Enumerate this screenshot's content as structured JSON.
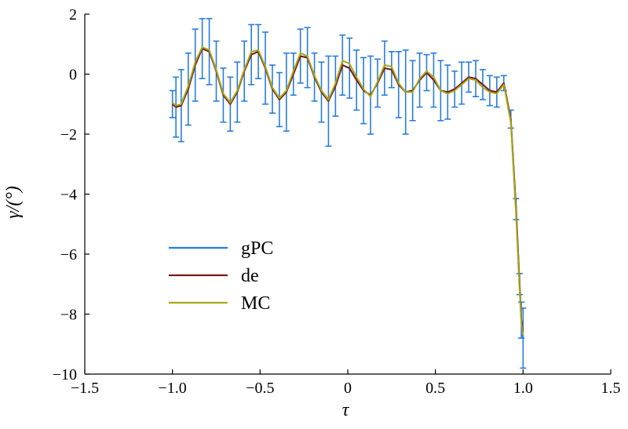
{
  "chart_data": {
    "type": "line",
    "title": "",
    "xlabel": "τ",
    "ylabel": "γ/(°)",
    "xlim": [
      -1.5,
      1.5
    ],
    "ylim": [
      -10,
      2
    ],
    "xticks": [
      -1.5,
      -1.0,
      -0.5,
      0,
      0.5,
      1.0,
      1.5
    ],
    "xtick_labels": [
      "−1.5",
      "−1.0",
      "−0.5",
      "0",
      "0.5",
      "1.0",
      "1.5"
    ],
    "yticks": [
      -10,
      -8,
      -6,
      -4,
      -2,
      0,
      2
    ],
    "ytick_labels": [
      "−10",
      "−8",
      "−6",
      "−4",
      "−2",
      "0",
      "2"
    ],
    "legend": {
      "position": "center-left",
      "entries": [
        "gPC",
        "de",
        "MC"
      ]
    },
    "series": [
      {
        "name": "gPC",
        "color": "#2b7bdc",
        "errorbars": true,
        "x": [
          -1.0,
          -0.98,
          -0.95,
          -0.91,
          -0.87,
          -0.83,
          -0.79,
          -0.75,
          -0.71,
          -0.67,
          -0.63,
          -0.59,
          -0.55,
          -0.51,
          -0.47,
          -0.43,
          -0.39,
          -0.35,
          -0.31,
          -0.27,
          -0.23,
          -0.19,
          -0.15,
          -0.11,
          -0.07,
          -0.03,
          0.01,
          0.05,
          0.09,
          0.13,
          0.17,
          0.21,
          0.25,
          0.29,
          0.33,
          0.37,
          0.41,
          0.45,
          0.49,
          0.53,
          0.57,
          0.61,
          0.65,
          0.69,
          0.73,
          0.77,
          0.81,
          0.85,
          0.89,
          0.93,
          0.96,
          0.98,
          0.99,
          1.0
        ],
        "y": [
          -1.0,
          -1.1,
          -1.05,
          -0.5,
          0.3,
          0.85,
          0.75,
          0.1,
          -0.7,
          -1.0,
          -0.6,
          0.1,
          0.65,
          0.75,
          0.2,
          -0.5,
          -0.85,
          -0.6,
          0.0,
          0.6,
          0.55,
          -0.1,
          -0.6,
          -0.9,
          -0.4,
          0.3,
          0.2,
          -0.2,
          -0.55,
          -0.7,
          -0.3,
          0.2,
          0.15,
          -0.35,
          -0.6,
          -0.55,
          -0.2,
          0.05,
          -0.2,
          -0.55,
          -0.6,
          -0.5,
          -0.3,
          -0.1,
          -0.15,
          -0.35,
          -0.55,
          -0.6,
          -0.3,
          -1.5,
          -4.5,
          -7.0,
          -8.2,
          -8.8
        ],
        "err": [
          0.45,
          1.0,
          1.2,
          1.2,
          1.2,
          1.0,
          1.1,
          1.0,
          0.9,
          0.9,
          1.0,
          1.0,
          1.0,
          0.9,
          1.2,
          0.8,
          0.9,
          1.3,
          0.7,
          0.9,
          1.0,
          0.8,
          1.0,
          1.5,
          1.0,
          1.0,
          1.0,
          1.0,
          1.1,
          1.3,
          0.8,
          0.9,
          0.6,
          1.1,
          1.4,
          1.0,
          0.9,
          0.6,
          0.9,
          1.0,
          0.9,
          0.6,
          0.7,
          0.5,
          0.6,
          0.5,
          0.5,
          0.5,
          0.25,
          0.3,
          0.35,
          0.35,
          0.6,
          1.0
        ]
      },
      {
        "name": "de",
        "color": "#7a1a1a",
        "x": [
          -1.0,
          -0.98,
          -0.95,
          -0.91,
          -0.87,
          -0.83,
          -0.79,
          -0.75,
          -0.71,
          -0.67,
          -0.63,
          -0.59,
          -0.55,
          -0.51,
          -0.47,
          -0.43,
          -0.39,
          -0.35,
          -0.31,
          -0.27,
          -0.23,
          -0.19,
          -0.15,
          -0.11,
          -0.07,
          -0.03,
          0.01,
          0.05,
          0.09,
          0.13,
          0.17,
          0.21,
          0.25,
          0.29,
          0.33,
          0.37,
          0.41,
          0.45,
          0.49,
          0.53,
          0.57,
          0.61,
          0.65,
          0.69,
          0.73,
          0.77,
          0.81,
          0.85,
          0.89,
          0.93,
          0.96,
          0.98,
          0.99,
          1.0
        ],
        "y": [
          -1.0,
          -1.1,
          -1.05,
          -0.5,
          0.3,
          0.85,
          0.75,
          0.1,
          -0.7,
          -1.0,
          -0.6,
          0.1,
          0.65,
          0.75,
          0.2,
          -0.5,
          -0.85,
          -0.6,
          0.0,
          0.6,
          0.55,
          -0.1,
          -0.6,
          -0.9,
          -0.4,
          0.3,
          0.2,
          -0.2,
          -0.55,
          -0.7,
          -0.3,
          0.2,
          0.15,
          -0.35,
          -0.6,
          -0.55,
          -0.2,
          0.05,
          -0.2,
          -0.55,
          -0.6,
          -0.5,
          -0.3,
          -0.1,
          -0.15,
          -0.35,
          -0.55,
          -0.6,
          -0.3,
          -1.5,
          -4.5,
          -7.0,
          -8.2,
          -8.6
        ]
      },
      {
        "name": "MC",
        "color": "#a8a81a",
        "x": [
          -1.0,
          -0.98,
          -0.95,
          -0.91,
          -0.87,
          -0.83,
          -0.79,
          -0.75,
          -0.71,
          -0.67,
          -0.63,
          -0.59,
          -0.55,
          -0.51,
          -0.47,
          -0.43,
          -0.39,
          -0.35,
          -0.31,
          -0.27,
          -0.23,
          -0.19,
          -0.15,
          -0.11,
          -0.07,
          -0.03,
          0.01,
          0.05,
          0.09,
          0.13,
          0.17,
          0.21,
          0.25,
          0.29,
          0.33,
          0.37,
          0.41,
          0.45,
          0.49,
          0.53,
          0.57,
          0.61,
          0.65,
          0.69,
          0.73,
          0.77,
          0.81,
          0.85,
          0.89,
          0.93,
          0.96,
          0.98,
          0.99,
          1.0
        ],
        "y": [
          -0.95,
          -1.05,
          -1.0,
          -0.4,
          0.4,
          0.9,
          0.8,
          0.15,
          -0.65,
          -0.95,
          -0.55,
          0.15,
          0.75,
          0.8,
          0.25,
          -0.45,
          -0.8,
          -0.55,
          0.1,
          0.7,
          0.6,
          -0.05,
          -0.55,
          -0.85,
          -0.3,
          0.45,
          0.35,
          -0.1,
          -0.5,
          -0.75,
          -0.25,
          0.3,
          0.25,
          -0.3,
          -0.6,
          -0.6,
          -0.15,
          0.1,
          -0.1,
          -0.55,
          -0.65,
          -0.55,
          -0.35,
          -0.15,
          -0.2,
          -0.45,
          -0.6,
          -0.65,
          -0.35,
          -1.6,
          -4.7,
          -7.2,
          -8.3,
          -8.7
        ]
      }
    ]
  }
}
